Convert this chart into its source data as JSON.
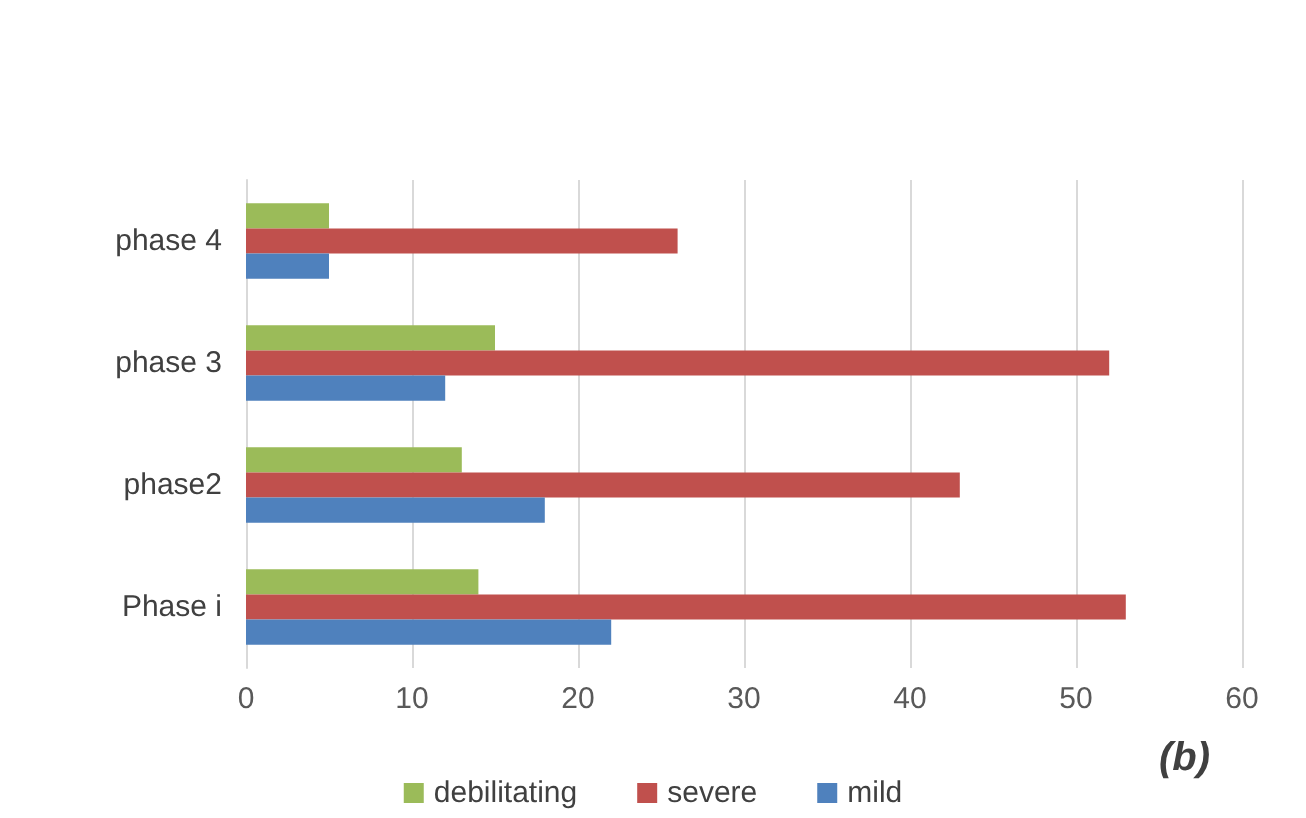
{
  "chart_data": {
    "type": "bar",
    "orientation": "horizontal",
    "categories": [
      "phase 4",
      "phase 3",
      "phase2",
      "Phase i"
    ],
    "series": [
      {
        "name": "debilitating",
        "color": "#9bbb59",
        "values": [
          5,
          15,
          13,
          14
        ]
      },
      {
        "name": "severe",
        "color": "#c0504d",
        "values": [
          26,
          52,
          43,
          53
        ]
      },
      {
        "name": "mild",
        "color": "#4f81bd",
        "values": [
          5,
          12,
          18,
          22
        ]
      }
    ],
    "xlim": [
      0,
      60
    ],
    "xticks": [
      0,
      10,
      20,
      30,
      40,
      50,
      60
    ],
    "grid": "x",
    "legend": "bottom",
    "annotations": [
      "(b)"
    ]
  }
}
